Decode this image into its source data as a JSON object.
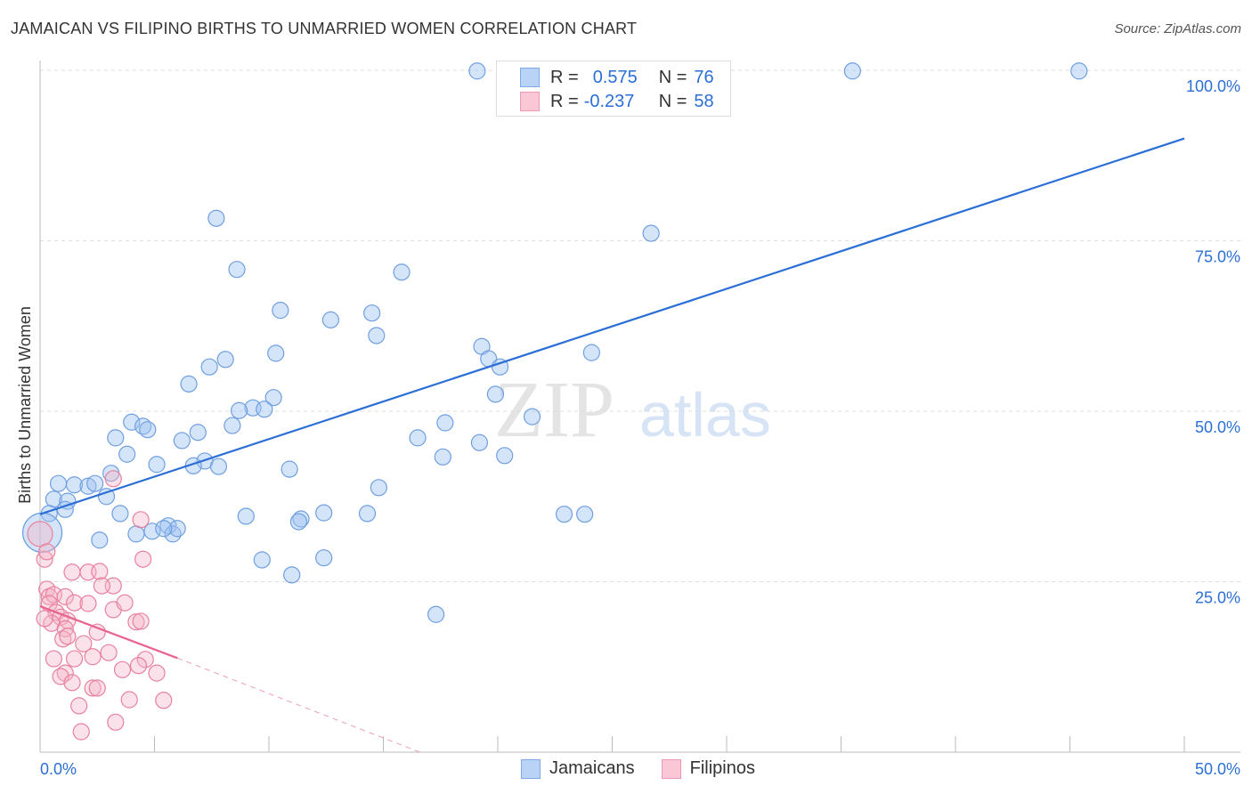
{
  "title": "JAMAICAN VS FILIPINO BIRTHS TO UNMARRIED WOMEN CORRELATION CHART",
  "source": "Source: ZipAtlas.com",
  "watermark": "ZIPatlas",
  "legend": {
    "rows": [
      {
        "r_label": "R =",
        "r": "0.575",
        "n_label": "N =",
        "n": "76"
      },
      {
        "r_label": "R =",
        "r": "-0.237",
        "n_label": "N =",
        "n": "58"
      }
    ]
  },
  "chart_data": {
    "type": "scatter",
    "title": "JAMAICAN VS FILIPINO BIRTHS TO UNMARRIED WOMEN CORRELATION CHART",
    "xlabel": "",
    "ylabel": "Births to Unmarried Women",
    "xlim": [
      0,
      50
    ],
    "ylim": [
      0,
      100
    ],
    "x_tick_labels": [
      "0.0%",
      "50.0%"
    ],
    "y_ticks": [
      25,
      50,
      75,
      100
    ],
    "y_tick_labels": [
      "25.0%",
      "50.0%",
      "75.0%",
      "100.0%"
    ],
    "grid": true,
    "legend_position": "top-center",
    "colors": {
      "jamaicans": "#2b6fd6",
      "filipinos": "#e8638e"
    },
    "series": [
      {
        "name": "Jamaicans",
        "trend": {
          "x": [
            0,
            50
          ],
          "y": [
            34.9,
            90.0
          ]
        },
        "points": [
          [
            19.1,
            99.9
          ],
          [
            35.5,
            99.9
          ],
          [
            45.4,
            99.9
          ],
          [
            7.7,
            78.3
          ],
          [
            26.7,
            76.1
          ],
          [
            8.6,
            70.8
          ],
          [
            15.8,
            70.4
          ],
          [
            10.5,
            64.8
          ],
          [
            14.5,
            64.4
          ],
          [
            12.7,
            63.4
          ],
          [
            14.7,
            61.1
          ],
          [
            19.3,
            59.5
          ],
          [
            10.3,
            58.5
          ],
          [
            8.1,
            57.6
          ],
          [
            19.6,
            57.7
          ],
          [
            7.4,
            56.5
          ],
          [
            20.1,
            56.5
          ],
          [
            24.1,
            58.6
          ],
          [
            6.5,
            54.0
          ],
          [
            19.9,
            52.5
          ],
          [
            10.2,
            52.0
          ],
          [
            9.3,
            50.5
          ],
          [
            8.7,
            50.1
          ],
          [
            9.8,
            50.3
          ],
          [
            21.5,
            49.2
          ],
          [
            17.7,
            48.3
          ],
          [
            4.0,
            48.4
          ],
          [
            4.5,
            47.8
          ],
          [
            4.7,
            47.3
          ],
          [
            8.4,
            47.9
          ],
          [
            6.9,
            46.9
          ],
          [
            6.2,
            45.7
          ],
          [
            3.3,
            46.1
          ],
          [
            16.5,
            46.1
          ],
          [
            19.2,
            45.4
          ],
          [
            3.8,
            43.7
          ],
          [
            5.1,
            42.2
          ],
          [
            17.6,
            43.3
          ],
          [
            20.3,
            43.5
          ],
          [
            7.2,
            42.7
          ],
          [
            6.7,
            42.0
          ],
          [
            7.8,
            41.9
          ],
          [
            10.9,
            41.5
          ],
          [
            3.1,
            40.9
          ],
          [
            0.8,
            39.4
          ],
          [
            1.5,
            39.2
          ],
          [
            2.1,
            39.0
          ],
          [
            2.4,
            39.4
          ],
          [
            14.8,
            38.8
          ],
          [
            0.6,
            37.1
          ],
          [
            2.9,
            37.5
          ],
          [
            1.2,
            36.8
          ],
          [
            1.1,
            35.6
          ],
          [
            0.4,
            35.0
          ],
          [
            3.5,
            35.0
          ],
          [
            9.0,
            34.6
          ],
          [
            12.4,
            35.1
          ],
          [
            14.3,
            35.0
          ],
          [
            22.9,
            34.9
          ],
          [
            23.8,
            34.9
          ],
          [
            11.4,
            34.2
          ],
          [
            11.3,
            33.8
          ],
          [
            2.6,
            31.1
          ],
          [
            4.2,
            32.0
          ],
          [
            4.9,
            32.4
          ],
          [
            5.6,
            33.2
          ],
          [
            5.8,
            32.0
          ],
          [
            6.0,
            32.8
          ],
          [
            5.4,
            32.8
          ],
          [
            9.7,
            28.2
          ],
          [
            12.4,
            28.5
          ],
          [
            11.0,
            26.0
          ],
          [
            17.3,
            20.2
          ],
          [
            0.1,
            32.2
          ]
        ]
      },
      {
        "name": "Filipinos",
        "trend": {
          "x": [
            0,
            6.0
          ],
          "y": [
            21.4,
            13.8
          ]
        },
        "trend_extension": {
          "x": [
            6.0,
            16.6
          ],
          "y": [
            13.8,
            0
          ]
        },
        "points": [
          [
            3.2,
            40.1
          ],
          [
            4.4,
            34.1
          ],
          [
            0.0,
            32.0
          ],
          [
            0.2,
            28.3
          ],
          [
            0.3,
            29.4
          ],
          [
            4.5,
            28.3
          ],
          [
            1.4,
            26.4
          ],
          [
            2.1,
            26.4
          ],
          [
            2.6,
            26.5
          ],
          [
            3.2,
            24.4
          ],
          [
            2.7,
            24.4
          ],
          [
            0.3,
            23.9
          ],
          [
            0.4,
            22.8
          ],
          [
            0.6,
            23.1
          ],
          [
            1.1,
            22.8
          ],
          [
            0.4,
            21.8
          ],
          [
            0.7,
            20.5
          ],
          [
            1.5,
            21.9
          ],
          [
            2.1,
            21.8
          ],
          [
            3.2,
            20.9
          ],
          [
            3.7,
            21.9
          ],
          [
            0.9,
            19.8
          ],
          [
            1.2,
            19.3
          ],
          [
            0.5,
            18.9
          ],
          [
            1.1,
            18.1
          ],
          [
            0.2,
            19.6
          ],
          [
            4.2,
            19.1
          ],
          [
            4.4,
            19.2
          ],
          [
            2.5,
            17.6
          ],
          [
            1.0,
            16.6
          ],
          [
            1.2,
            17.0
          ],
          [
            1.9,
            15.9
          ],
          [
            3.0,
            14.6
          ],
          [
            0.6,
            13.7
          ],
          [
            1.5,
            13.7
          ],
          [
            2.3,
            14.0
          ],
          [
            3.6,
            12.1
          ],
          [
            4.6,
            13.6
          ],
          [
            4.3,
            12.7
          ],
          [
            5.1,
            11.6
          ],
          [
            1.1,
            11.6
          ],
          [
            0.9,
            11.1
          ],
          [
            1.4,
            10.2
          ],
          [
            2.3,
            9.4
          ],
          [
            2.5,
            9.4
          ],
          [
            1.7,
            6.8
          ],
          [
            3.9,
            7.7
          ],
          [
            5.4,
            7.6
          ],
          [
            1.8,
            3.0
          ],
          [
            3.3,
            4.4
          ]
        ]
      }
    ]
  }
}
